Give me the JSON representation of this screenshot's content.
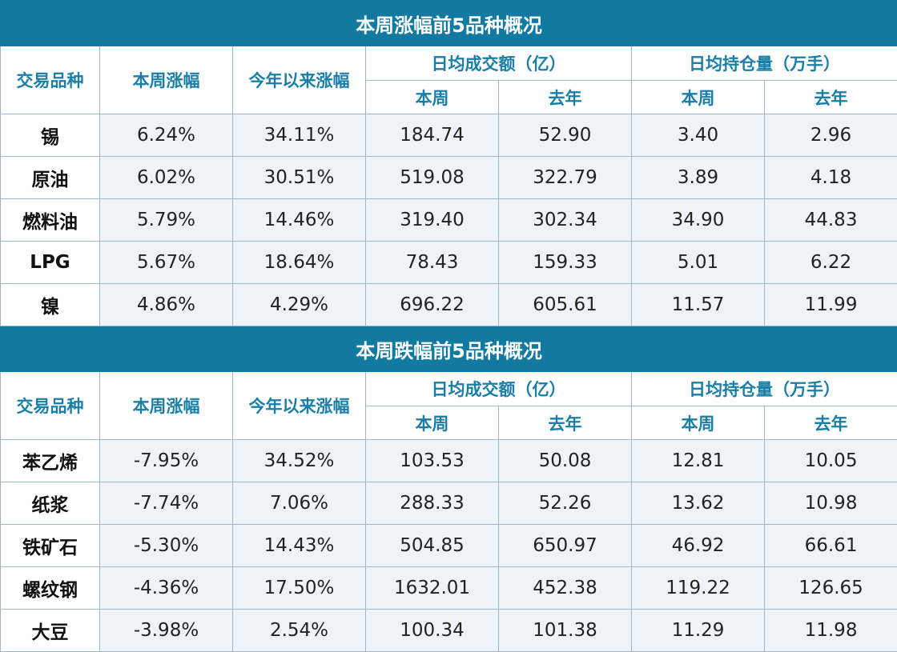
{
  "sections": [
    {
      "title": "本周涨幅前5品种概况",
      "headers": {
        "variety": "交易品种",
        "week_change": "本周涨幅",
        "ytd_change": "今年以来涨幅",
        "avg_volume": "日均成交额（亿）",
        "avg_oi": "日均持仓量（万手）",
        "this_week": "本周",
        "last_year": "去年"
      },
      "rows": [
        {
          "name": "锡",
          "week": "6.24%",
          "ytd": "34.11%",
          "vol_week": "184.74",
          "vol_last": "52.90",
          "oi_week": "3.40",
          "oi_last": "2.96"
        },
        {
          "name": "原油",
          "week": "6.02%",
          "ytd": "30.51%",
          "vol_week": "519.08",
          "vol_last": "322.79",
          "oi_week": "3.89",
          "oi_last": "4.18"
        },
        {
          "name": "燃料油",
          "week": "5.79%",
          "ytd": "14.46%",
          "vol_week": "319.40",
          "vol_last": "302.34",
          "oi_week": "34.90",
          "oi_last": "44.83"
        },
        {
          "name": "LPG",
          "week": "5.67%",
          "ytd": "18.64%",
          "vol_week": "78.43",
          "vol_last": "159.33",
          "oi_week": "5.01",
          "oi_last": "6.22"
        },
        {
          "name": "镍",
          "week": "4.86%",
          "ytd": "4.29%",
          "vol_week": "696.22",
          "vol_last": "605.61",
          "oi_week": "11.57",
          "oi_last": "11.99"
        }
      ]
    },
    {
      "title": "本周跌幅前5品种概况",
      "headers": {
        "variety": "交易品种",
        "week_change": "本周涨幅",
        "ytd_change": "今年以来涨幅",
        "avg_volume": "日均成交额（亿）",
        "avg_oi": "日均持仓量（万手）",
        "this_week": "本周",
        "last_year": "去年"
      },
      "rows": [
        {
          "name": "苯乙烯",
          "week": "-7.95%",
          "ytd": "34.52%",
          "vol_week": "103.53",
          "vol_last": "50.08",
          "oi_week": "12.81",
          "oi_last": "10.05"
        },
        {
          "name": "纸浆",
          "week": "-7.74%",
          "ytd": "7.06%",
          "vol_week": "288.33",
          "vol_last": "52.26",
          "oi_week": "13.62",
          "oi_last": "10.98"
        },
        {
          "name": "铁矿石",
          "week": "-5.30%",
          "ytd": "14.43%",
          "vol_week": "504.85",
          "vol_last": "650.97",
          "oi_week": "46.92",
          "oi_last": "66.61"
        },
        {
          "name": "螺纹钢",
          "week": "-4.36%",
          "ytd": "17.50%",
          "vol_week": "1632.01",
          "vol_last": "452.38",
          "oi_week": "119.22",
          "oi_last": "126.65"
        },
        {
          "name": "大豆",
          "week": "-3.98%",
          "ytd": "2.54%",
          "vol_week": "100.34",
          "vol_last": "101.38",
          "oi_week": "11.29",
          "oi_last": "11.98"
        }
      ]
    }
  ],
  "colors": {
    "header_bg": "#127aa0",
    "header_text": "#1a7ea6",
    "cell_bg": "#eef3f9"
  }
}
